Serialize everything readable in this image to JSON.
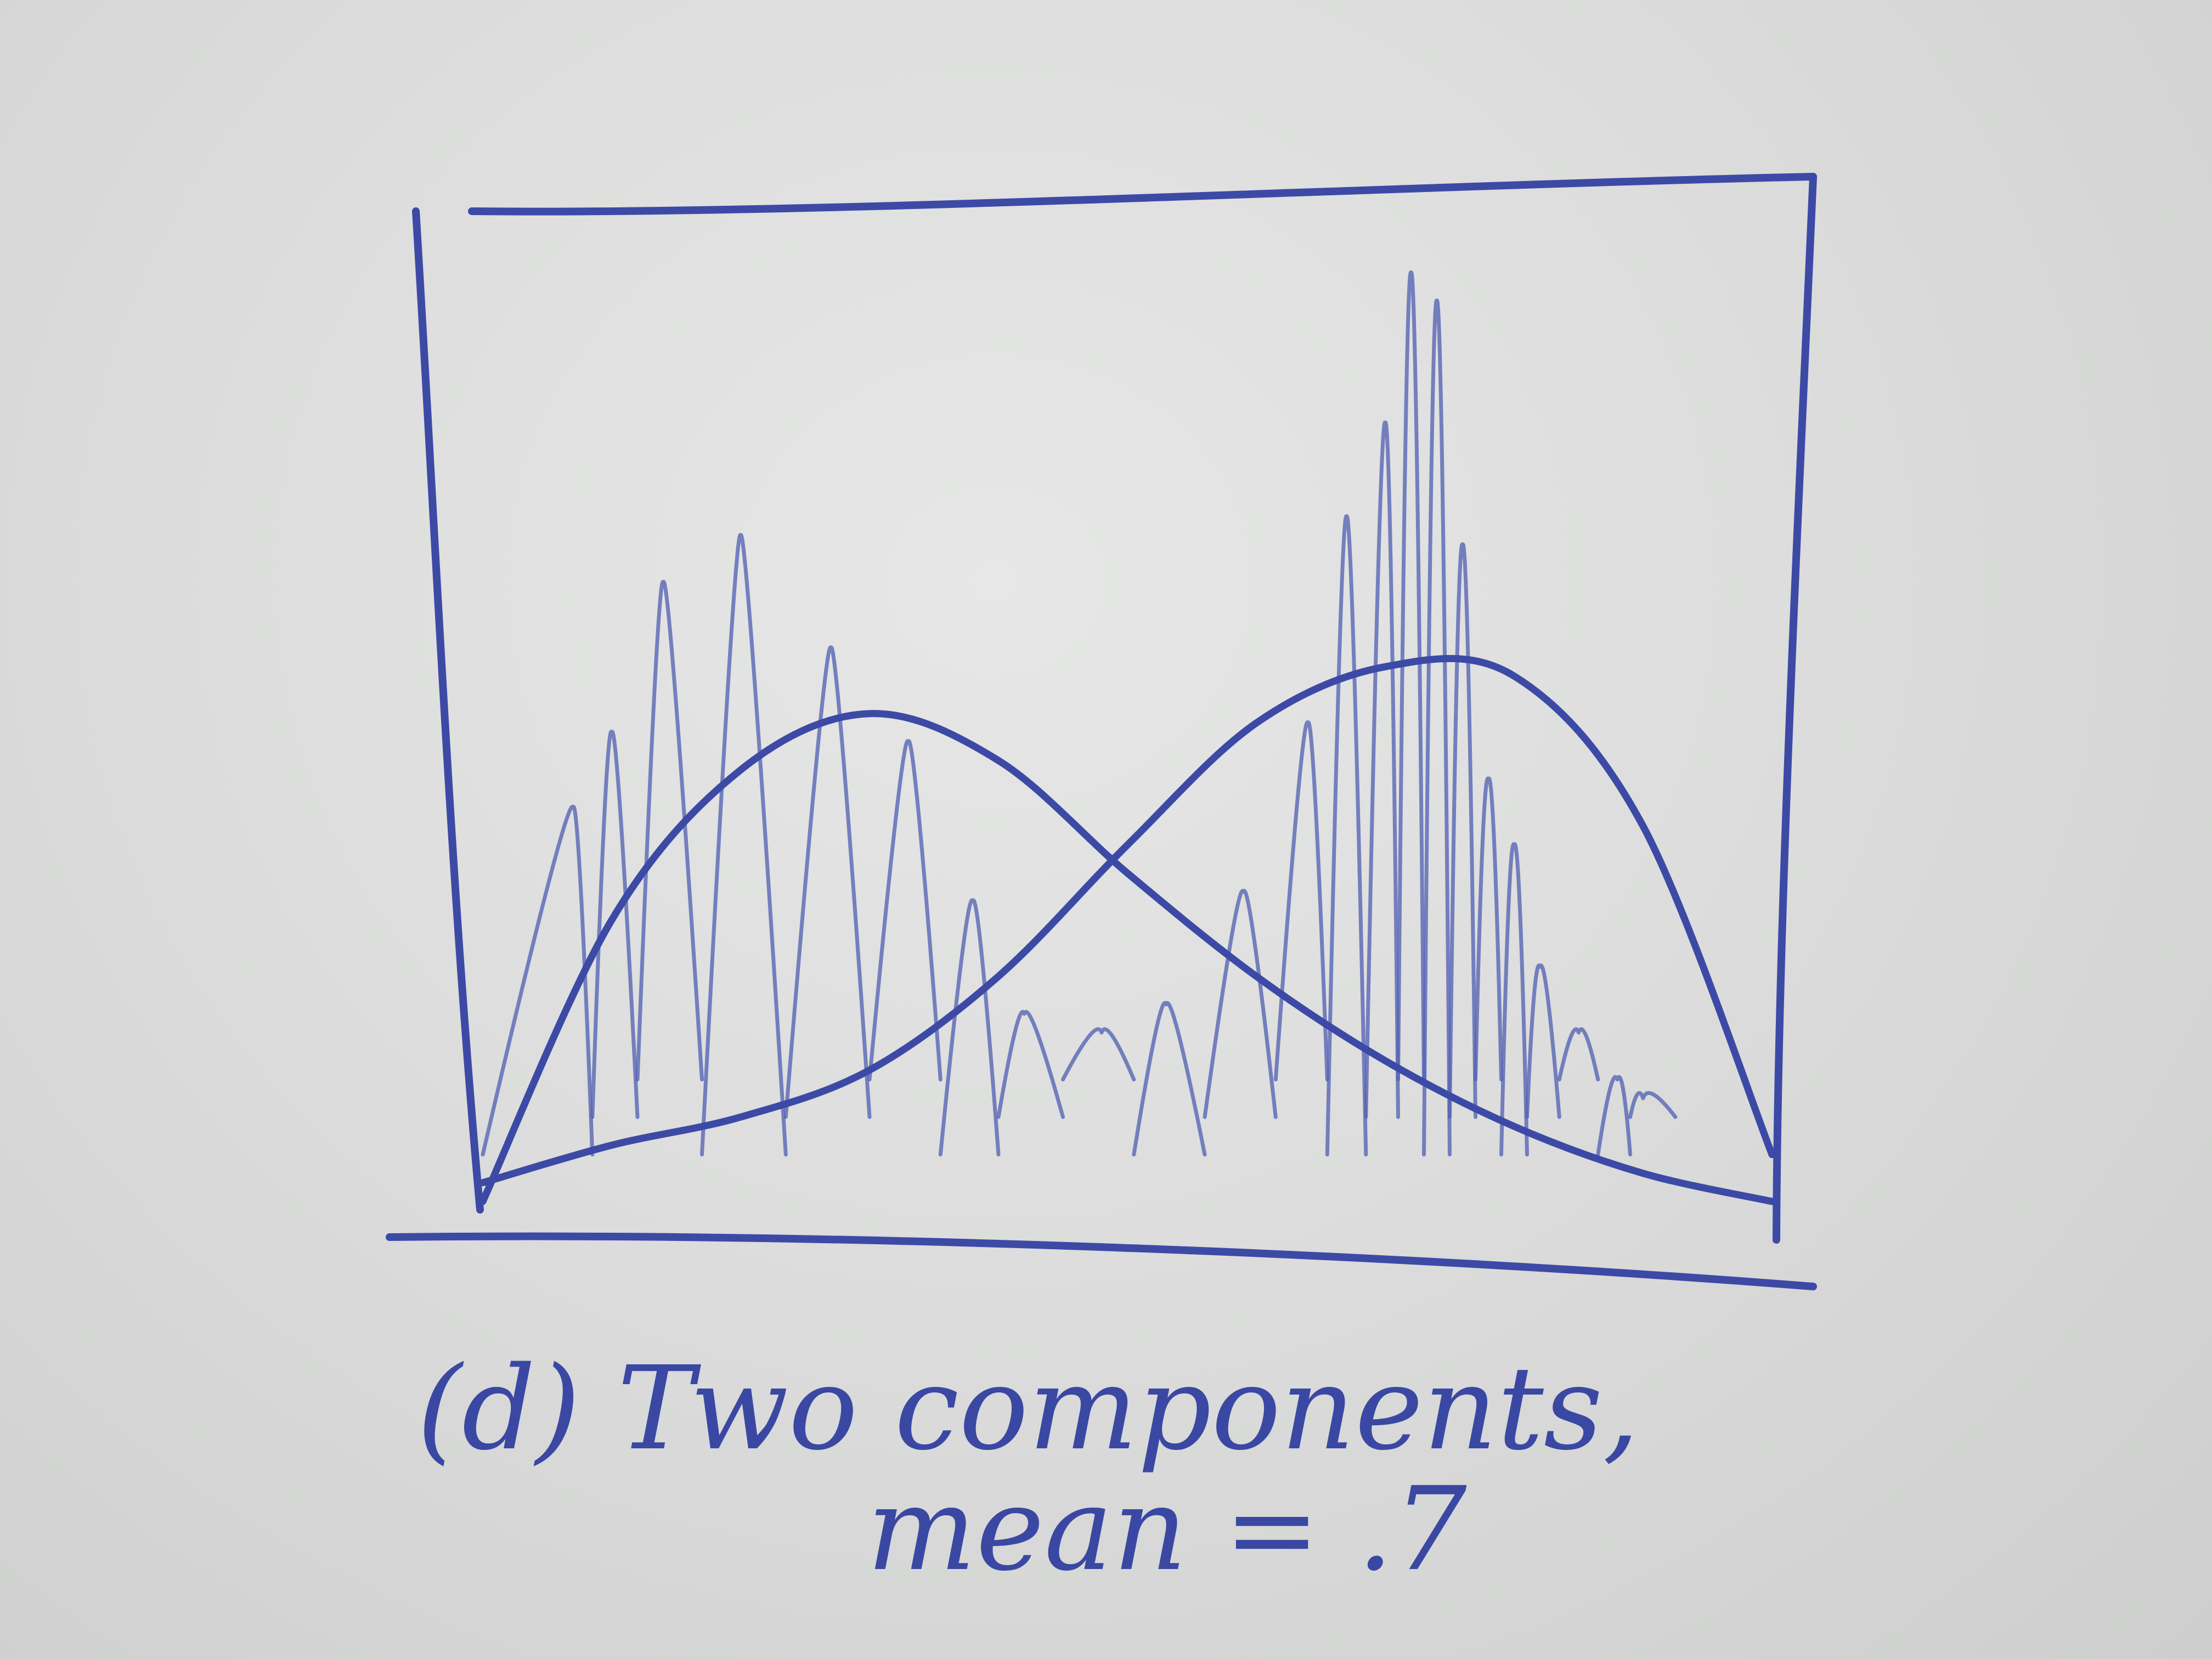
{
  "chart_data": {
    "type": "line",
    "caption_line1": "(d) Two components,",
    "caption_line2": "mean = .7",
    "xlim": [
      0,
      1
    ],
    "ylim": [
      0,
      1
    ],
    "components": [
      {
        "x": [
          0.0,
          0.1,
          0.2,
          0.3,
          0.4,
          0.5,
          0.6,
          0.7,
          0.8,
          0.9,
          1.0
        ],
        "y": [
          0.0,
          0.3,
          0.46,
          0.52,
          0.47,
          0.35,
          0.24,
          0.15,
          0.08,
          0.03,
          0.0
        ]
      },
      {
        "x": [
          0.0,
          0.1,
          0.2,
          0.3,
          0.4,
          0.5,
          0.6,
          0.7,
          0.8,
          0.9,
          1.0
        ],
        "y": [
          0.02,
          0.06,
          0.09,
          0.14,
          0.24,
          0.38,
          0.51,
          0.57,
          0.56,
          0.4,
          0.05
        ]
      }
    ],
    "histogram_peaks": {
      "x": [
        0.07,
        0.1,
        0.14,
        0.2,
        0.27,
        0.33,
        0.38,
        0.42,
        0.48,
        0.53,
        0.59,
        0.64,
        0.67,
        0.7,
        0.72,
        0.74,
        0.76,
        0.78,
        0.8,
        0.82,
        0.85,
        0.88,
        0.9
      ],
      "y": [
        0.42,
        0.5,
        0.66,
        0.71,
        0.59,
        0.49,
        0.32,
        0.2,
        0.18,
        0.21,
        0.33,
        0.51,
        0.73,
        0.83,
        0.99,
        0.96,
        0.7,
        0.45,
        0.38,
        0.25,
        0.18,
        0.13,
        0.11
      ]
    },
    "grid": false
  }
}
